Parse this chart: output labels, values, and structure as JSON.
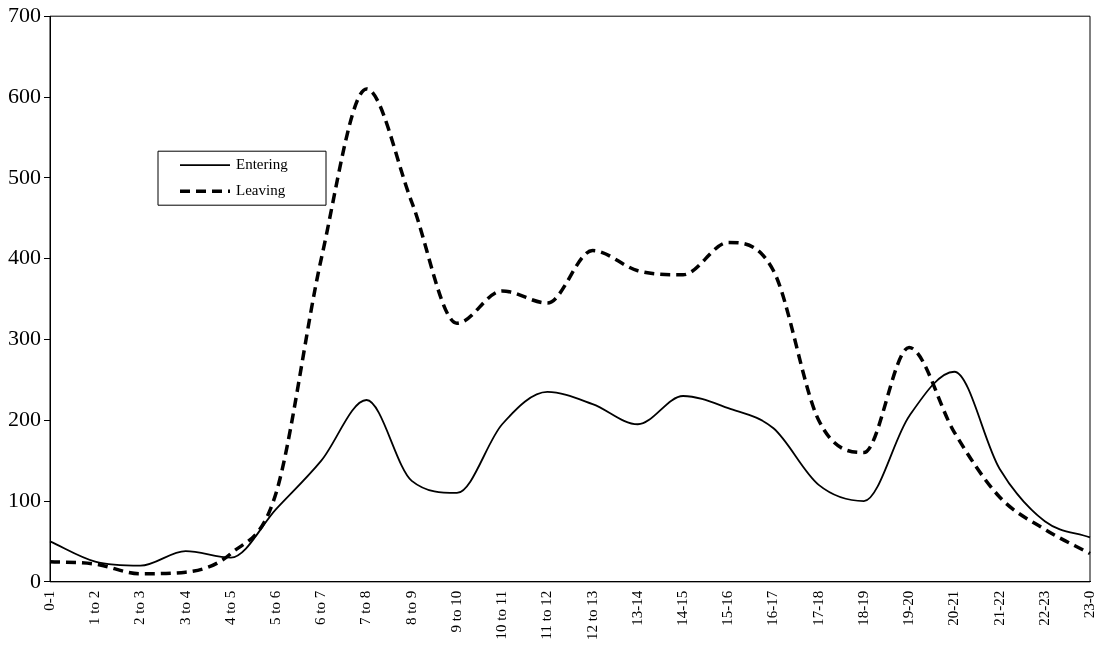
{
  "chart_data": {
    "type": "line",
    "categories": [
      "0-1",
      "1 to 2",
      "2 to 3",
      "3 to 4",
      "4 to 5",
      "5 to 6",
      "6 to 7",
      "7 to 8",
      "8 to 9",
      "9 to 10",
      "10 to 11",
      "11 to 12",
      "12 to 13",
      "13-14",
      "14-15",
      "15-16",
      "16-17",
      "17-18",
      "18-19",
      "19-20",
      "20-21",
      "21-22",
      "22-23",
      "23-0"
    ],
    "series": [
      {
        "name": "Entering",
        "color": "#000000",
        "line_style": "solid",
        "values": [
          50,
          25,
          20,
          38,
          30,
          90,
          150,
          225,
          125,
          110,
          195,
          235,
          220,
          195,
          230,
          215,
          190,
          120,
          100,
          205,
          260,
          140,
          75,
          55
        ]
      },
      {
        "name": "Leaving",
        "color": "#000000",
        "line_style": "dashed",
        "values": [
          25,
          22,
          10,
          12,
          35,
          110,
          400,
          610,
          470,
          320,
          360,
          345,
          410,
          385,
          380,
          420,
          385,
          200,
          160,
          290,
          185,
          105,
          65,
          35
        ]
      }
    ],
    "ylim": [
      0,
      700
    ],
    "yticks": [
      0,
      100,
      200,
      300,
      400,
      500,
      600,
      700
    ],
    "grid": false,
    "legend": "top left",
    "marker": "none"
  }
}
